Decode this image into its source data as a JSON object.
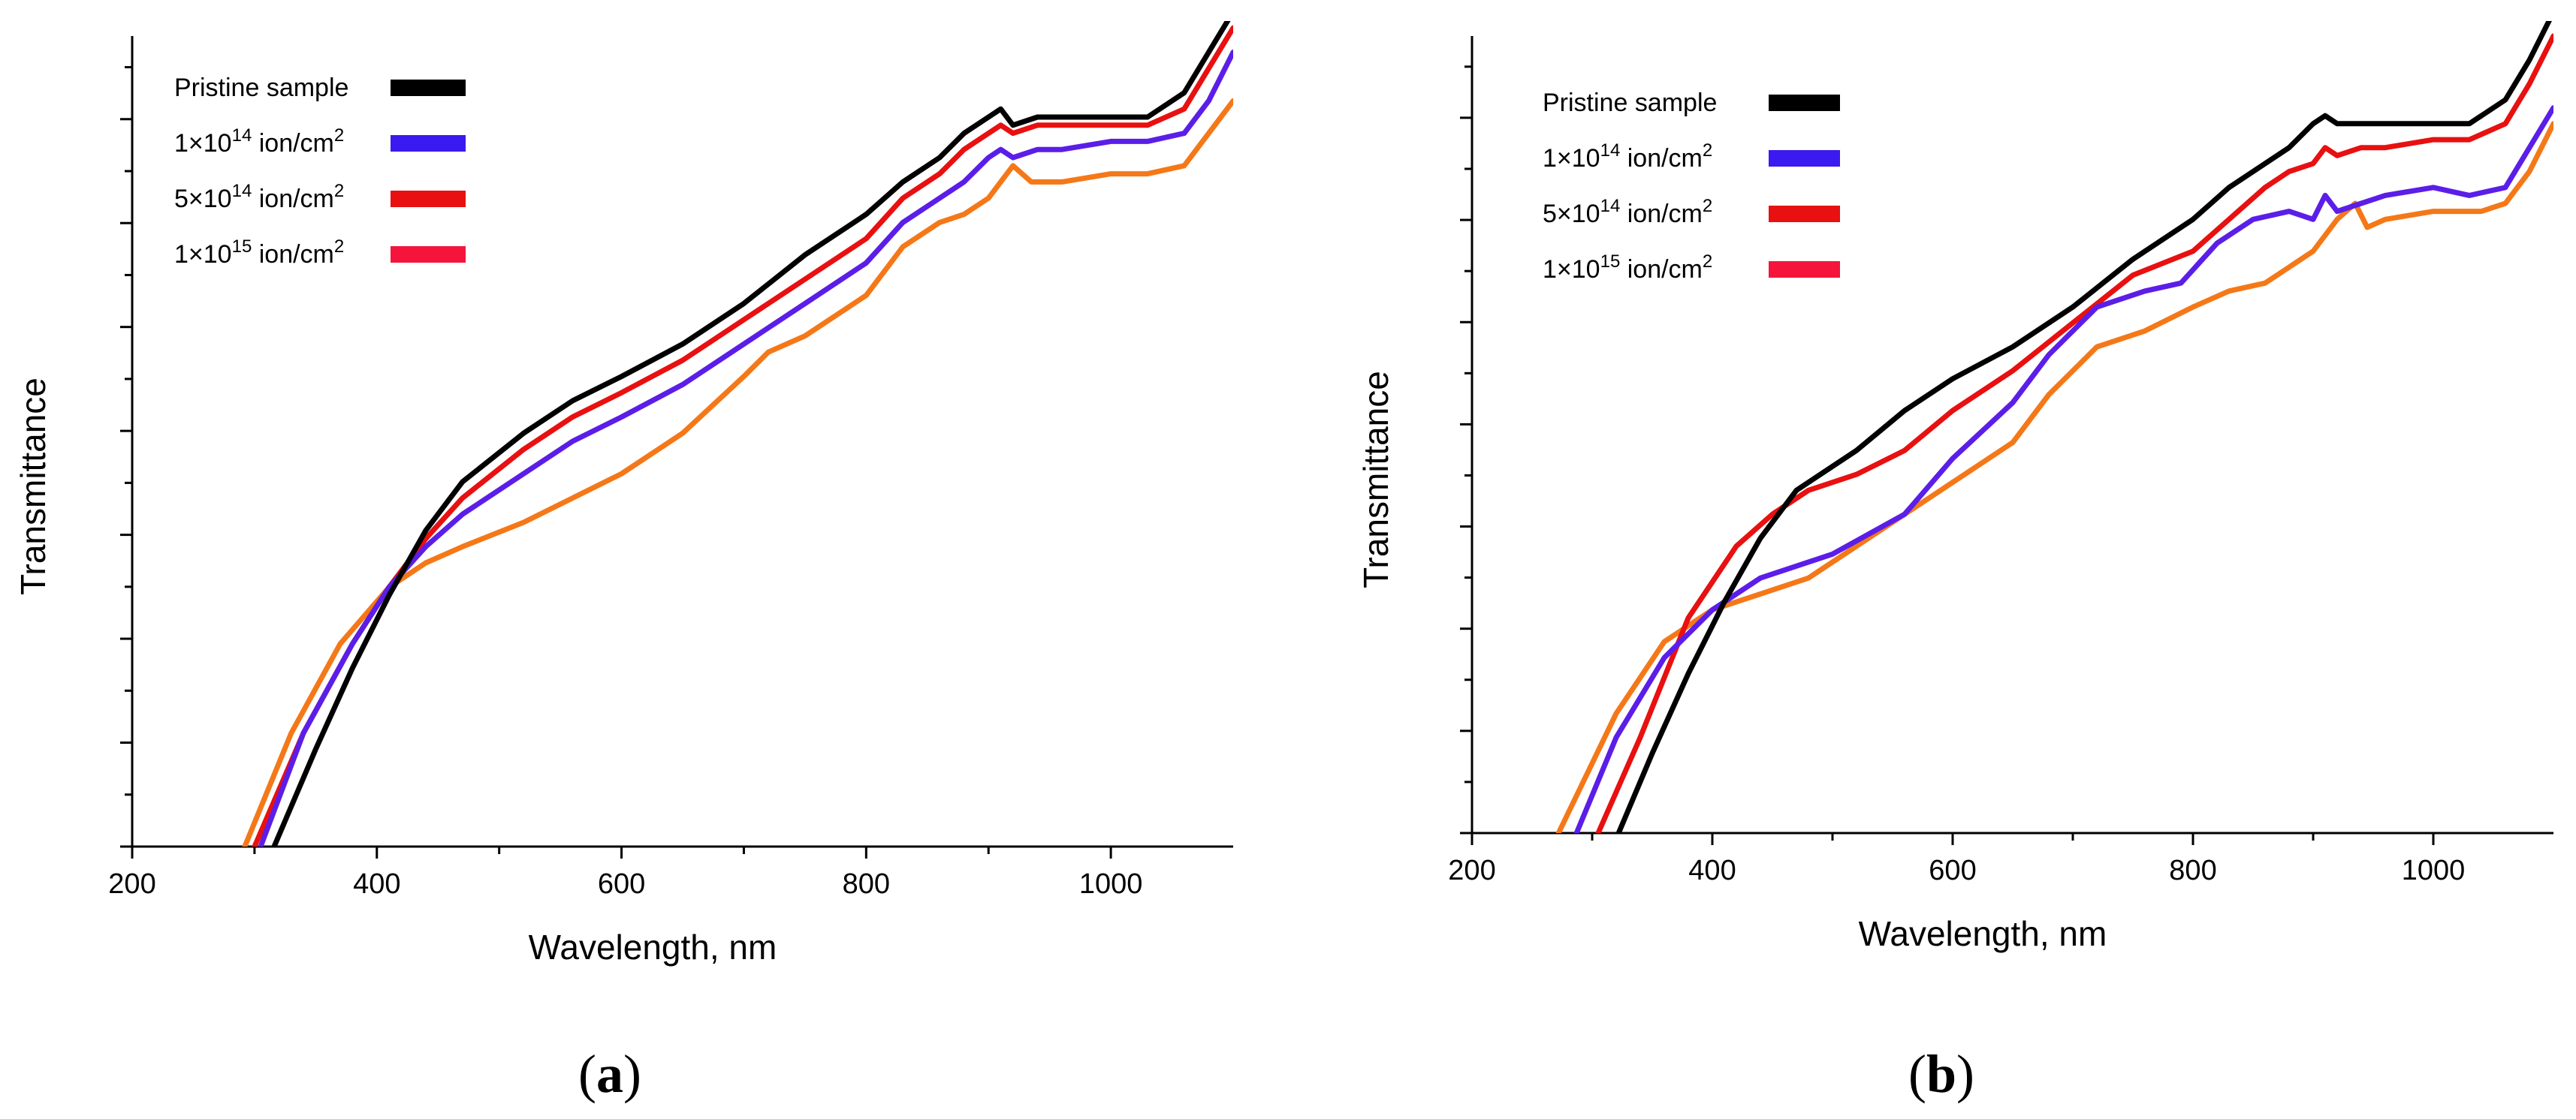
{
  "chart_data": [
    {
      "panel": "(a)",
      "panel_letter": "a",
      "type": "line",
      "xlabel": "Wavelength, nm",
      "ylabel": "Transmittance",
      "xlim": [
        200,
        1100
      ],
      "ylim": [
        0,
        1
      ],
      "xticks": [
        "200",
        "400",
        "600",
        "800",
        "1000"
      ],
      "grid": false,
      "legend_position": "top-left",
      "series": [
        {
          "name": "Pristine sample",
          "color": "#000000",
          "x": [
            316,
            350,
            380,
            410,
            440,
            470,
            520,
            560,
            600,
            650,
            700,
            750,
            800,
            830,
            860,
            880,
            900,
            910,
            920,
            940,
            960,
            1000,
            1030,
            1060,
            1080,
            1100
          ],
          "y": [
            0.0,
            0.12,
            0.22,
            0.31,
            0.39,
            0.45,
            0.51,
            0.55,
            0.58,
            0.62,
            0.67,
            0.73,
            0.78,
            0.82,
            0.85,
            0.88,
            0.9,
            0.91,
            0.89,
            0.9,
            0.9,
            0.9,
            0.9,
            0.93,
            0.98,
            1.03
          ]
        },
        {
          "name": "1×10^14 ion/cm^2",
          "color": "#5b1ee8",
          "x": [
            305,
            340,
            380,
            410,
            440,
            470,
            520,
            560,
            600,
            650,
            700,
            750,
            800,
            830,
            860,
            880,
            900,
            910,
            920,
            940,
            960,
            1000,
            1030,
            1060,
            1080,
            1100
          ],
          "y": [
            0.0,
            0.14,
            0.25,
            0.32,
            0.37,
            0.41,
            0.46,
            0.5,
            0.53,
            0.57,
            0.62,
            0.67,
            0.72,
            0.77,
            0.8,
            0.82,
            0.85,
            0.86,
            0.85,
            0.86,
            0.86,
            0.87,
            0.87,
            0.88,
            0.92,
            0.98
          ]
        },
        {
          "name": "5×10^14 ion/cm^2",
          "color": "#e81010",
          "x": [
            300,
            340,
            380,
            410,
            440,
            470,
            520,
            560,
            600,
            650,
            700,
            750,
            800,
            830,
            860,
            880,
            900,
            910,
            920,
            940,
            960,
            1000,
            1030,
            1060,
            1080,
            1100
          ],
          "y": [
            0.0,
            0.14,
            0.25,
            0.32,
            0.38,
            0.43,
            0.49,
            0.53,
            0.56,
            0.6,
            0.65,
            0.7,
            0.75,
            0.8,
            0.83,
            0.86,
            0.88,
            0.89,
            0.88,
            0.89,
            0.89,
            0.89,
            0.89,
            0.91,
            0.96,
            1.01
          ]
        },
        {
          "name": "1×10^15 ion/cm^2",
          "color": "#f57818",
          "x": [
            292,
            330,
            370,
            410,
            440,
            470,
            520,
            560,
            600,
            650,
            700,
            720,
            750,
            800,
            830,
            860,
            880,
            900,
            910,
            920,
            935,
            960,
            1000,
            1030,
            1060,
            1080,
            1100
          ],
          "y": [
            0.0,
            0.14,
            0.25,
            0.32,
            0.35,
            0.37,
            0.4,
            0.43,
            0.46,
            0.51,
            0.58,
            0.61,
            0.63,
            0.68,
            0.74,
            0.77,
            0.78,
            0.8,
            0.82,
            0.84,
            0.82,
            0.82,
            0.83,
            0.83,
            0.84,
            0.88,
            0.92
          ]
        }
      ]
    },
    {
      "panel": "(b)",
      "panel_letter": "b",
      "type": "line",
      "xlabel": "Wavelength, nm",
      "ylabel": "Transmittance",
      "xlim": [
        200,
        1100
      ],
      "ylim": [
        0,
        1
      ],
      "xticks": [
        "200",
        "400",
        "600",
        "800",
        "1000"
      ],
      "grid": false,
      "legend_position": "top-left",
      "series": [
        {
          "name": "Pristine sample",
          "color": "#000000",
          "x": [
            322,
            350,
            380,
            410,
            440,
            470,
            520,
            560,
            600,
            650,
            700,
            750,
            800,
            830,
            860,
            880,
            900,
            910,
            920,
            940,
            960,
            1000,
            1030,
            1060,
            1080,
            1100
          ],
          "y": [
            0.0,
            0.1,
            0.2,
            0.29,
            0.37,
            0.43,
            0.48,
            0.53,
            0.57,
            0.61,
            0.66,
            0.72,
            0.77,
            0.81,
            0.84,
            0.86,
            0.89,
            0.9,
            0.89,
            0.89,
            0.89,
            0.89,
            0.89,
            0.92,
            0.97,
            1.03
          ]
        },
        {
          "name": "1×10^14 ion/cm^2",
          "color": "#5b1ee8",
          "x": [
            287,
            320,
            360,
            400,
            440,
            500,
            560,
            600,
            650,
            680,
            720,
            760,
            790,
            820,
            850,
            880,
            900,
            910,
            920,
            940,
            960,
            1000,
            1030,
            1060,
            1080,
            1100
          ],
          "y": [
            0.0,
            0.12,
            0.22,
            0.28,
            0.32,
            0.35,
            0.4,
            0.47,
            0.54,
            0.6,
            0.66,
            0.68,
            0.69,
            0.74,
            0.77,
            0.78,
            0.77,
            0.8,
            0.78,
            0.79,
            0.8,
            0.81,
            0.8,
            0.81,
            0.86,
            0.91
          ]
        },
        {
          "name": "5×10^14 ion/cm^2",
          "color": "#e81010",
          "x": [
            305,
            340,
            380,
            420,
            450,
            480,
            520,
            560,
            600,
            650,
            700,
            750,
            800,
            830,
            860,
            880,
            900,
            910,
            920,
            940,
            960,
            1000,
            1030,
            1060,
            1080,
            1100
          ],
          "y": [
            0.0,
            0.12,
            0.27,
            0.36,
            0.4,
            0.43,
            0.45,
            0.48,
            0.53,
            0.58,
            0.64,
            0.7,
            0.73,
            0.77,
            0.81,
            0.83,
            0.84,
            0.86,
            0.85,
            0.86,
            0.86,
            0.87,
            0.87,
            0.89,
            0.94,
            1.0
          ]
        },
        {
          "name": "1×10^15 ion/cm^2",
          "color": "#f57818",
          "x": [
            272,
            320,
            360,
            400,
            440,
            480,
            520,
            560,
            600,
            650,
            680,
            720,
            760,
            800,
            830,
            860,
            880,
            900,
            920,
            935,
            945,
            960,
            1000,
            1040,
            1060,
            1080,
            1100
          ],
          "y": [
            0.0,
            0.15,
            0.24,
            0.28,
            0.3,
            0.32,
            0.36,
            0.4,
            0.44,
            0.49,
            0.55,
            0.61,
            0.63,
            0.66,
            0.68,
            0.69,
            0.71,
            0.73,
            0.77,
            0.79,
            0.76,
            0.77,
            0.78,
            0.78,
            0.79,
            0.83,
            0.89
          ]
        }
      ]
    }
  ]
}
